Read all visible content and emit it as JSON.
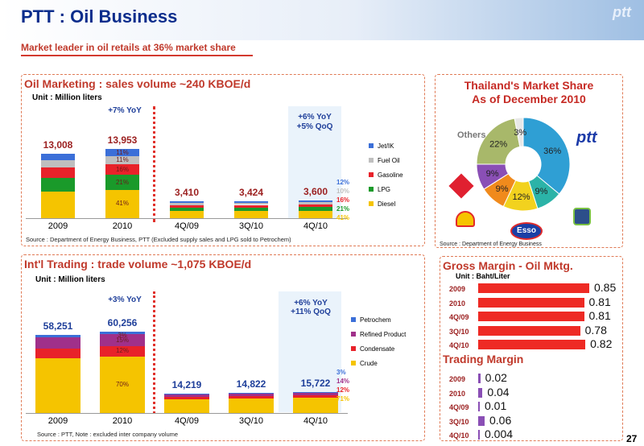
{
  "header": {
    "title": "PTT : Oil Business",
    "subtitle": "Market leader in oil retails at 36% market share",
    "logo": "ptt"
  },
  "page_number": "27",
  "marketing": {
    "title": "Oil Marketing : sales volume ~240 KBOE/d",
    "unit": "Unit : Million liters",
    "yoy_left": "+7% YoY",
    "yoy_right_1": "+6% YoY",
    "yoy_right_2": "+5% QoQ",
    "source": "Source : Department of Energy Business,  PTT (Excluded supply sales and LPG sold to Petrochem)"
  },
  "trading": {
    "title": "Int'l Trading : trade volume ~1,075 KBOE/d",
    "unit": "Unit : Million liters",
    "yoy_left": "+3% YoY",
    "yoy_right_1": "+6% YoY",
    "yoy_right_2": "+11% QoQ",
    "source": "Source : PTT, Note : excluded inter company volume"
  },
  "market_share": {
    "title_1": "Thailand's Market Share",
    "title_2": "As of December 2010",
    "others_label": "Others",
    "source": "Source : Department of Energy Business",
    "brands": [
      "ptt",
      "Esso"
    ]
  },
  "gross_margin": {
    "title": "Gross Margin - Oil Mktg.",
    "unit": "Unit : Baht/Liter"
  },
  "trading_margin": {
    "title": "Trading Margin"
  },
  "chart_data": [
    {
      "type": "bar",
      "title": "Oil Marketing : sales volume ~240 KBOE/d",
      "categories": [
        "2009",
        "2010",
        "4Q/09",
        "3Q/10",
        "4Q/10"
      ],
      "totals": [
        "13,008",
        "13,953",
        "3,410",
        "3,424",
        "3,600"
      ],
      "total_values": [
        13008,
        13953,
        3410,
        3424,
        3600
      ],
      "series": [
        {
          "name": "Diesel",
          "color": "#f5c400",
          "shares": [
            41,
            41,
            41,
            41,
            41
          ]
        },
        {
          "name": "LPG",
          "color": "#1a9a2a",
          "shares": [
            21,
            21,
            21,
            21,
            21
          ]
        },
        {
          "name": "Gasoline",
          "color": "#e8222a",
          "shares": [
            16,
            16,
            16,
            16,
            16
          ]
        },
        {
          "name": "Fuel Oil",
          "color": "#bfbfbf",
          "shares": [
            11,
            11,
            10,
            10,
            10
          ]
        },
        {
          "name": "Jet/IK",
          "color": "#3b6fd8",
          "shares": [
            11,
            11,
            12,
            12,
            12
          ]
        }
      ],
      "labels_2010": [
        "11%",
        "11%",
        "16%",
        "21%",
        "41%"
      ],
      "labels_4q10": [
        "12%",
        "10%",
        "16%",
        "21%",
        "41%"
      ],
      "ymax": 16000
    },
    {
      "type": "bar",
      "title": "Int'l Trading : trade volume ~1,075 KBOE/d",
      "categories": [
        "2009",
        "2010",
        "4Q/09",
        "3Q/10",
        "4Q/10"
      ],
      "totals": [
        "58,251",
        "60,256",
        "14,219",
        "14,822",
        "15,722"
      ],
      "total_values": [
        58251,
        60256,
        14219,
        14822,
        15722
      ],
      "series": [
        {
          "name": "Crude",
          "color": "#f5c400",
          "shares": [
            70,
            70,
            71,
            71,
            71
          ]
        },
        {
          "name": "Condensate",
          "color": "#e8222a",
          "shares": [
            12,
            12,
            12,
            12,
            12
          ]
        },
        {
          "name": "Refined Product",
          "color": "#a0308a",
          "shares": [
            15,
            15,
            14,
            14,
            14
          ]
        },
        {
          "name": "Petrochem",
          "color": "#3b6fd8",
          "shares": [
            3,
            3,
            3,
            3,
            3
          ]
        }
      ],
      "labels_2010": [
        "3%",
        "15%",
        "12%",
        "70%"
      ],
      "labels_4q10": [
        "3%",
        "14%",
        "12%",
        "71%"
      ],
      "ymax": 70000
    },
    {
      "type": "pie",
      "title": "Thailand's Market Share As of December 2010",
      "slices": [
        {
          "label": "36%",
          "value": 36,
          "color": "#2f9fd4"
        },
        {
          "label": "9%",
          "value": 9,
          "color": "#2bb3a8"
        },
        {
          "label": "12%",
          "value": 12,
          "color": "#f2d21e"
        },
        {
          "label": "9%",
          "value": 9,
          "color": "#f08a1c"
        },
        {
          "label": "9%",
          "value": 9,
          "color": "#8a4fb5"
        },
        {
          "label": "22%",
          "value": 22,
          "color": "#a8b86a"
        },
        {
          "label": "3%",
          "value": 3,
          "color": "#e8e8e8"
        }
      ]
    },
    {
      "type": "bar",
      "title": "Gross Margin - Oil Mktg.",
      "categories": [
        "2009",
        "2010",
        "4Q/09",
        "3Q/10",
        "4Q/10"
      ],
      "values": [
        0.85,
        0.81,
        0.81,
        0.78,
        0.82
      ],
      "labels": [
        "0.85",
        "0.81",
        "0.81",
        "0.78",
        "0.82"
      ]
    },
    {
      "type": "bar",
      "title": "Trading Margin",
      "categories": [
        "2009",
        "2010",
        "4Q/09",
        "3Q/10",
        "4Q/10"
      ],
      "values": [
        0.02,
        0.04,
        0.01,
        0.06,
        0.004
      ],
      "labels": [
        "0.02",
        "0.04",
        "0.01",
        "0.06",
        "0.004"
      ]
    }
  ]
}
